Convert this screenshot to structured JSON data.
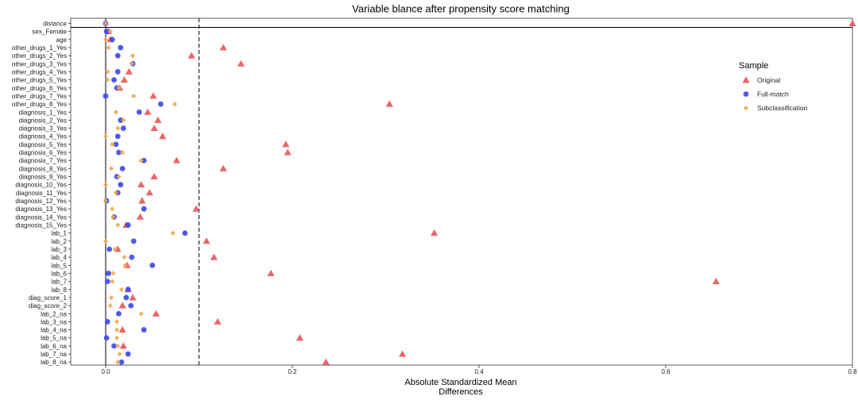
{
  "chart_data": {
    "type": "scatter",
    "title": "Variable blance after propensity score matching",
    "xlabel_lines": [
      "Absolute Standardized Mean",
      "Differences"
    ],
    "xlim": [
      -0.02,
      0.8
    ],
    "x_ticks": [
      0.0,
      0.2,
      0.4,
      0.6,
      0.8
    ],
    "x_tick_labels": [
      "0.0",
      "0.2",
      "0.4",
      "0.6",
      "0.8"
    ],
    "threshold": 0.1,
    "zero_line": 0.0,
    "legend": {
      "title": "Sample",
      "position": "right",
      "entries": [
        "Original",
        "Full-match",
        "Subclassification"
      ]
    },
    "colors": {
      "Original": "#E8585A",
      "Full-match": "#3F4BE8",
      "Subclassification": "#F0A84E"
    },
    "categories": [
      "distance",
      "sex_Female",
      "age",
      "other_drugs_1_Yes",
      "other_drugs_2_Yes",
      "other_drugs_3_Yes",
      "other_drugs_4_Yes",
      "other_drugs_5_Yes",
      "other_drugs_6_Yes",
      "other_drugs_7_Yes",
      "other_drugs_8_Yes",
      "diagnosis_1_Yes",
      "diagnosis_2_Yes",
      "diagnosis_3_Yes",
      "diagnosis_4_Yes",
      "diagnosis_5_Yes",
      "diagnosis_6_Yes",
      "diagnosis_7_Yes",
      "diagnosis_8_Yes",
      "diagnosis_9_Yes",
      "diagnosis_10_Yes",
      "diagnosis_11_Yes",
      "diagnosis_12_Yes",
      "diagnosis_13_Yes",
      "diagnosis_14_Yes",
      "diagnosis_15_Yes",
      "lab_1",
      "lab_2",
      "lab_3",
      "lab_4",
      "lab_5",
      "lab_6",
      "lab_7",
      "lab_8",
      "diag_score_1",
      "diag_score_2",
      "lab_2_na",
      "lab_3_na",
      "lab_4_na",
      "lab_5_na",
      "lab_6_na",
      "lab_7_na",
      "lab_8_na"
    ],
    "series": [
      {
        "name": "Original",
        "marker": "triangle",
        "values": [
          0.8,
          0.003,
          0.005,
          0.126,
          0.092,
          0.145,
          0.025,
          0.02,
          0.015,
          0.051,
          0.304,
          0.045,
          0.056,
          0.052,
          0.061,
          0.193,
          0.195,
          0.076,
          0.126,
          0.052,
          0.038,
          0.047,
          0.039,
          0.097,
          0.037,
          0.022,
          0.352,
          0.108,
          0.013,
          0.116,
          0.023,
          0.177,
          0.654,
          0.024,
          0.029,
          0.018,
          0.054,
          0.12,
          0.018,
          0.208,
          0.019,
          0.318,
          0.236
        ]
      },
      {
        "name": "Full-match",
        "marker": "circle",
        "values": [
          0.0,
          0.001,
          0.007,
          0.016,
          0.013,
          0.029,
          0.013,
          0.009,
          0.012,
          0.0,
          0.059,
          0.036,
          0.016,
          0.019,
          0.013,
          0.011,
          0.014,
          0.041,
          0.018,
          0.012,
          0.016,
          0.013,
          0.001,
          0.041,
          0.009,
          0.024,
          0.085,
          0.03,
          0.004,
          0.028,
          0.05,
          0.003,
          0.002,
          0.024,
          0.022,
          0.027,
          0.014,
          0.002,
          0.041,
          0.001,
          0.009,
          0.024,
          0.017
        ]
      },
      {
        "name": "Subclassification",
        "marker": "diamond",
        "values": [
          0.0,
          0.005,
          0.0,
          0.003,
          0.029,
          0.028,
          0.002,
          0.002,
          0.014,
          0.03,
          0.074,
          0.011,
          0.019,
          0.013,
          0.0,
          0.007,
          0.018,
          0.038,
          0.006,
          0.014,
          0.0,
          0.011,
          0.0,
          0.007,
          0.008,
          0.013,
          0.072,
          0.0,
          0.01,
          0.02,
          0.021,
          0.008,
          0.007,
          0.017,
          0.006,
          0.005,
          0.038,
          0.012,
          0.012,
          0.012,
          0.013,
          0.015,
          0.013
        ]
      }
    ]
  }
}
